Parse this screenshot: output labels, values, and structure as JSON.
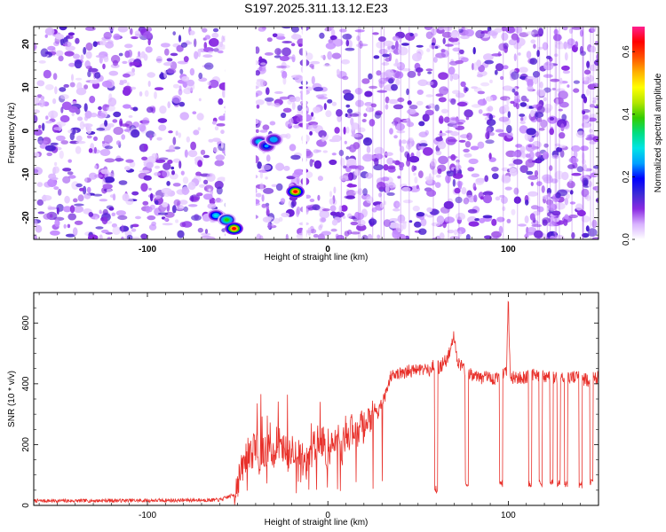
{
  "chart_data": [
    {
      "type": "heatmap",
      "title": "S197.2025.311.13.12.E23",
      "xlabel": "Height of straight line (km)",
      "ylabel": "Frequency (Hz)",
      "xlim": [
        -163,
        150
      ],
      "ylim": [
        -25,
        24
      ],
      "xticks": [
        "-100",
        "0",
        "100"
      ],
      "xtick_values": [
        -100,
        0,
        100
      ],
      "yticks": [
        "-20",
        "-10",
        "0",
        "10",
        "20"
      ],
      "ytick_values": [
        -20,
        -10,
        0,
        10,
        20
      ],
      "colorbar": {
        "label": "Normalized spectral amplitude",
        "range": [
          0,
          0.68
        ],
        "ticks": [
          "0.0",
          "0.2",
          "0.4",
          "0.6"
        ],
        "tick_values": [
          0.0,
          0.2,
          0.4,
          0.6
        ],
        "colormap": [
          "#ffffff",
          "#d9b3ff",
          "#8a2be2",
          "#3b2bd6",
          "#0000ff",
          "#00a0ff",
          "#00e5e5",
          "#00dd80",
          "#33cc00",
          "#b3e600",
          "#ffff00",
          "#ffb000",
          "#ff5000",
          "#ff0000",
          "#ff1f8f"
        ]
      },
      "blank_bands_x": [
        [
          -57,
          -40
        ],
        [
          -14,
          -12
        ]
      ],
      "hotspots": [
        {
          "x": -62,
          "y": -19.5,
          "value": 0.3
        },
        {
          "x": -56,
          "y": -20.5,
          "value": 0.4
        },
        {
          "x": -52,
          "y": -22.5,
          "value": 0.62
        },
        {
          "x": -38,
          "y": -2.5,
          "value": 0.28
        },
        {
          "x": -34,
          "y": -3.5,
          "value": 0.22
        },
        {
          "x": -30,
          "y": -2.0,
          "value": 0.26
        },
        {
          "x": -18,
          "y": -14.0,
          "value": 0.62
        }
      ]
    },
    {
      "type": "line",
      "xlabel": "Height of straight line (km)",
      "ylabel": "SNR (10 * v/v)",
      "xlim": [
        -163,
        150
      ],
      "ylim": [
        0,
        700
      ],
      "xticks": [
        "-100",
        "0",
        "100"
      ],
      "xtick_values": [
        -100,
        0,
        100
      ],
      "yticks": [
        "0",
        "200",
        "400",
        "600"
      ],
      "ytick_values": [
        0,
        200,
        400,
        600
      ],
      "series": [
        {
          "name": "SNR",
          "color": "#e8302a",
          "x": [
            -163,
            -140,
            -120,
            -100,
            -80,
            -60,
            -52,
            -50,
            -48,
            -46,
            -44,
            -42,
            -40,
            -38,
            -36,
            -34,
            -32,
            -30,
            -28,
            -26,
            -24,
            -22,
            -20,
            -18,
            -16,
            -14,
            -12,
            -10,
            -8,
            -6,
            -4,
            -2,
            0,
            2,
            4,
            6,
            8,
            10,
            12,
            14,
            16,
            18,
            20,
            22,
            24,
            26,
            28,
            30,
            32,
            34,
            36,
            40,
            44,
            48,
            52,
            56,
            58,
            60,
            62,
            64,
            66,
            68,
            70,
            72,
            74,
            76,
            78,
            80,
            84,
            88,
            92,
            96,
            99,
            100,
            101,
            102,
            104,
            108,
            112,
            116,
            120,
            124,
            128,
            132,
            136,
            140,
            144,
            148,
            150
          ],
          "values": [
            15,
            15,
            16,
            16,
            17,
            18,
            35,
            80,
            110,
            150,
            180,
            170,
            200,
            150,
            190,
            160,
            220,
            150,
            180,
            170,
            220,
            160,
            200,
            170,
            180,
            150,
            130,
            160,
            190,
            210,
            220,
            200,
            160,
            190,
            200,
            230,
            180,
            250,
            230,
            260,
            240,
            270,
            250,
            300,
            280,
            320,
            300,
            340,
            360,
            410,
            440,
            430,
            440,
            445,
            450,
            440,
            460,
            460,
            450,
            470,
            480,
            520,
            560,
            470,
            460,
            440,
            440,
            430,
            420,
            420,
            415,
            430,
            440,
            690,
            430,
            420,
            420,
            420,
            425,
            430,
            425,
            420,
            420,
            425,
            420,
            420,
            410,
            420,
            420
          ],
          "dips": [
            {
              "x": 60,
              "min": 40
            },
            {
              "x": 77,
              "min": 60
            },
            {
              "x": 96,
              "min": 60
            },
            {
              "x": 112,
              "min": 60
            },
            {
              "x": 118,
              "min": 60
            },
            {
              "x": 124,
              "min": 60
            },
            {
              "x": 128,
              "min": 60
            },
            {
              "x": 132,
              "min": 60
            },
            {
              "x": 140,
              "min": 55
            },
            {
              "x": 146,
              "min": 60
            }
          ]
        }
      ]
    }
  ]
}
